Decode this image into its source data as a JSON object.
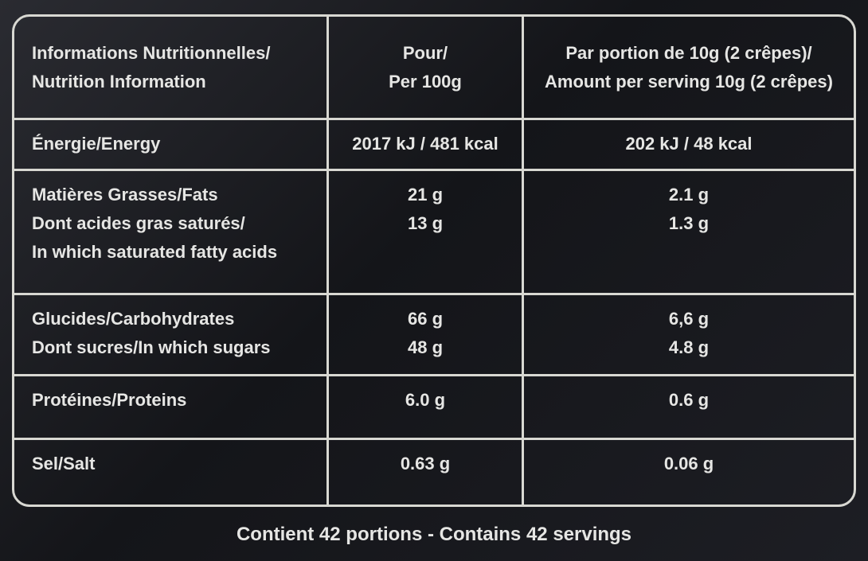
{
  "table": {
    "header": [
      [
        "Informations Nutritionnelles/",
        "Nutrition Information"
      ],
      [
        "Pour/",
        "Per 100g"
      ],
      [
        "Par portion de 10g (2 crêpes)/",
        "Amount per serving 10g (2 crêpes)"
      ]
    ],
    "rows": [
      [
        [
          "Énergie/Energy"
        ],
        [
          "2017 kJ / 481 kcal"
        ],
        [
          "202 kJ / 48 kcal"
        ]
      ],
      [
        [
          "Matières Grasses/Fats",
          "Dont acides gras saturés/",
          "In which saturated fatty acids"
        ],
        [
          "21 g",
          "13 g"
        ],
        [
          "2.1 g",
          "1.3 g"
        ]
      ],
      [
        [
          "Glucides/Carbohydrates",
          "Dont sucres/In which sugars"
        ],
        [
          "66 g",
          "48 g"
        ],
        [
          "6,6 g",
          "4.8 g"
        ]
      ],
      [
        [
          "Protéines/Proteins"
        ],
        [
          "6.0 g"
        ],
        [
          "0.6 g"
        ]
      ],
      [
        [
          "Sel/Salt"
        ],
        [
          "0.63 g"
        ],
        [
          "0.06 g"
        ]
      ]
    ]
  },
  "footer": "Contient 42 portions - Contains 42 servings"
}
